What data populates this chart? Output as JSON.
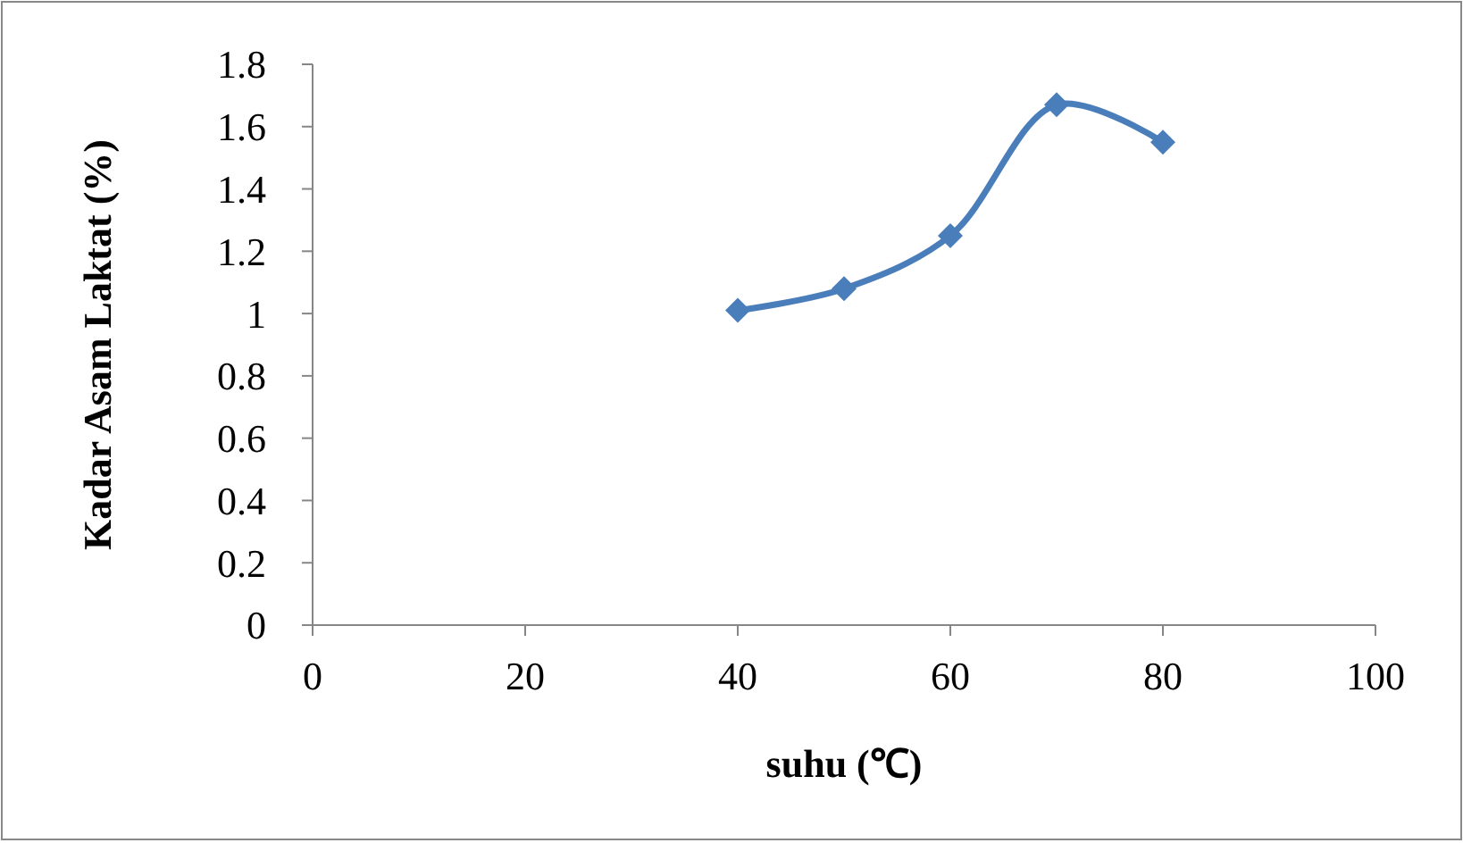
{
  "chart_data": {
    "type": "line",
    "xlabel": "suhu (℃)",
    "ylabel": "Kadar Asam Laktat (%)",
    "x": [
      40,
      50,
      60,
      70,
      80
    ],
    "series": [
      {
        "color": "#4a7ebb",
        "values": [
          1.01,
          1.08,
          1.25,
          1.67,
          1.55
        ]
      }
    ],
    "xlim": [
      0,
      100
    ],
    "xticks": [
      0,
      20,
      40,
      60,
      80,
      100
    ],
    "ylim": [
      0,
      1.8
    ],
    "yticks": [
      0,
      0.2,
      0.4,
      0.6,
      0.8,
      1,
      1.2,
      1.4,
      1.6,
      1.8
    ],
    "grid": false,
    "marker": "diamond",
    "line_style": "solid"
  }
}
